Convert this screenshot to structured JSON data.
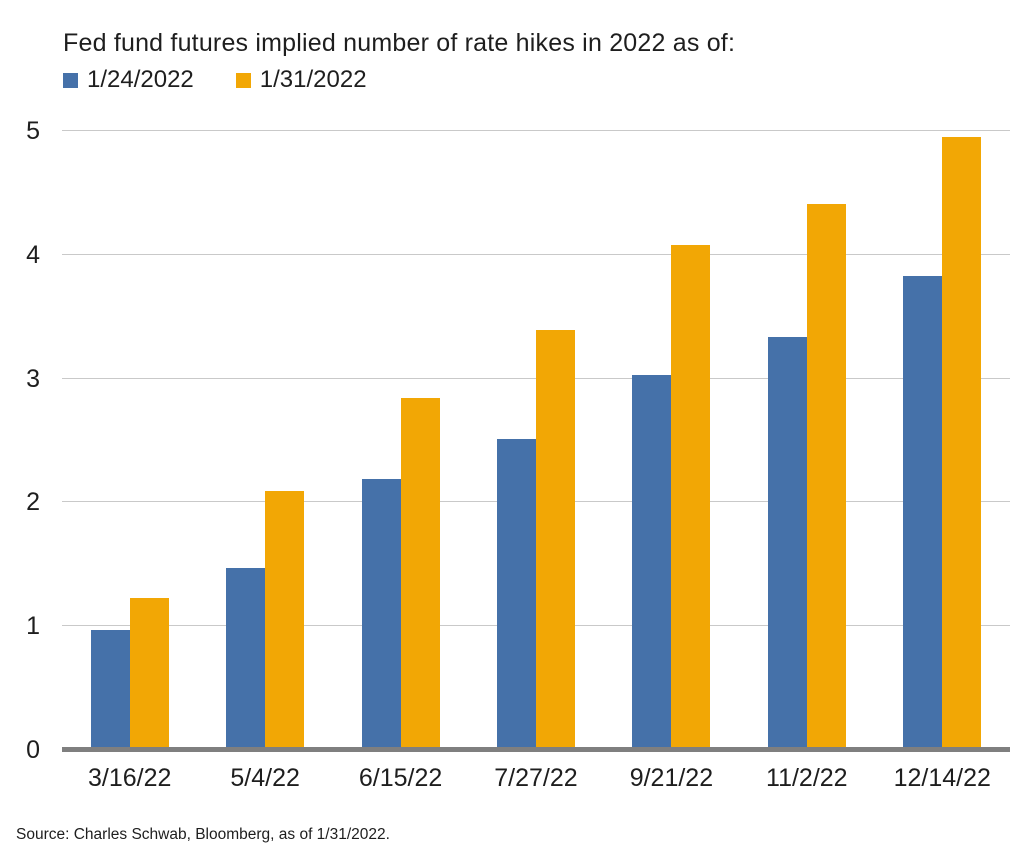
{
  "title": "Fed fund futures implied number of rate hikes in 2022 as of:",
  "source": "Source: Charles Schwab, Bloomberg, as of 1/31/2022.",
  "colors": {
    "series1": "#4571A9",
    "series2": "#F2A705",
    "gridline": "#C9C9C9",
    "axis_line": "#7F7F7F",
    "text": "#1E1E1E"
  },
  "chart_data": {
    "type": "bar",
    "title": "Fed fund futures implied number of rate hikes in 2022 as of:",
    "categories": [
      "3/16/22",
      "5/4/22",
      "6/15/22",
      "7/27/22",
      "9/21/22",
      "11/2/22",
      "12/14/22"
    ],
    "series": [
      {
        "name": "1/24/2022",
        "color": "#4571A9",
        "values": [
          0.97,
          1.47,
          2.19,
          2.51,
          3.03,
          3.34,
          3.83
        ]
      },
      {
        "name": "1/31/2022",
        "color": "#F2A705",
        "values": [
          1.23,
          2.09,
          2.84,
          3.39,
          4.08,
          4.41,
          4.95
        ]
      }
    ],
    "xlabel": "",
    "ylabel": "",
    "ylim": [
      0,
      5
    ],
    "yticks": [
      0,
      1,
      2,
      3,
      4,
      5
    ],
    "grid": true,
    "legend_position": "top-left",
    "footnote": "Source: Charles Schwab, Bloomberg, as of 1/31/2022."
  }
}
